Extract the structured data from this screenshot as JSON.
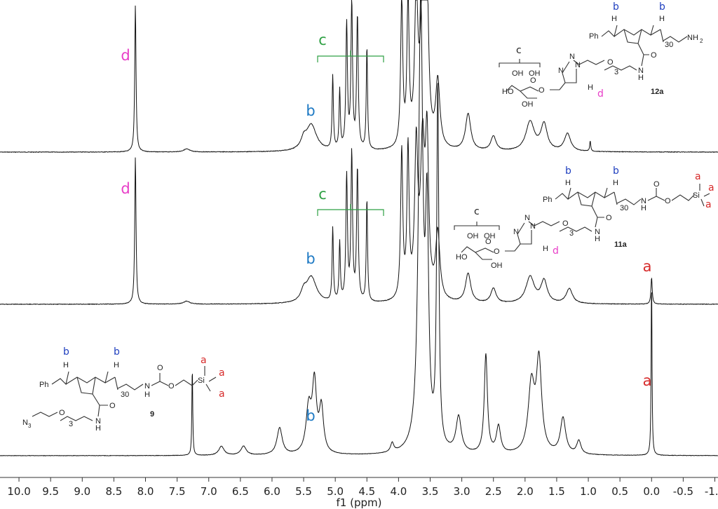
{
  "chart_data": {
    "type": "line",
    "xlabel": "f1 (ppm)",
    "xlim": [
      10.3,
      -1.05
    ],
    "x_reversed": true,
    "x_ticks": [
      "10.0",
      "9.5",
      "9.0",
      "8.5",
      "8.0",
      "7.5",
      "7.0",
      "6.5",
      "6.0",
      "5.5",
      "5.0",
      "4.5",
      "4.0",
      "3.5",
      "3.0",
      "2.5",
      "2.0",
      "1.5",
      "1.0",
      "0.5",
      "0.0",
      "-0.5",
      "-1.0"
    ],
    "x_tick_values": [
      10.0,
      9.5,
      9.0,
      8.5,
      8.0,
      7.5,
      7.0,
      6.5,
      6.0,
      5.5,
      5.0,
      4.5,
      4.0,
      3.5,
      3.0,
      2.5,
      2.0,
      1.5,
      1.0,
      0.5,
      0.0,
      -0.5,
      -1.0
    ],
    "grid": false,
    "series": [
      {
        "compound": "12a",
        "peaks": [
          {
            "x": 8.16,
            "y": 1.0,
            "w": 0.012
          },
          {
            "x": 7.35,
            "y": 0.02,
            "w": 0.06
          },
          {
            "x": 5.5,
            "y": 0.06,
            "w": 0.05
          },
          {
            "x": 5.38,
            "y": 0.18,
            "w": 0.1
          },
          {
            "x": 5.04,
            "y": 0.5,
            "w": 0.012
          },
          {
            "x": 4.93,
            "y": 0.4,
            "w": 0.012
          },
          {
            "x": 4.82,
            "y": 0.85,
            "w": 0.015
          },
          {
            "x": 4.74,
            "y": 1.0,
            "w": 0.015
          },
          {
            "x": 4.65,
            "y": 0.9,
            "w": 0.015
          },
          {
            "x": 4.5,
            "y": 0.7,
            "w": 0.012
          },
          {
            "x": 3.95,
            "y": 1.0,
            "w": 0.02
          },
          {
            "x": 3.85,
            "y": 1.0,
            "w": 0.02
          },
          {
            "x": 3.72,
            "y": 1.0,
            "w": 0.03
          },
          {
            "x": 3.62,
            "y": 1.0,
            "w": 0.04
          },
          {
            "x": 3.55,
            "y": 1.0,
            "w": 0.03
          },
          {
            "x": 3.38,
            "y": 0.45,
            "w": 0.04
          },
          {
            "x": 2.9,
            "y": 0.25,
            "w": 0.05
          },
          {
            "x": 2.5,
            "y": 0.1,
            "w": 0.05
          },
          {
            "x": 1.92,
            "y": 0.2,
            "w": 0.08
          },
          {
            "x": 1.7,
            "y": 0.18,
            "w": 0.06
          },
          {
            "x": 1.33,
            "y": 0.12,
            "w": 0.06
          },
          {
            "x": 0.97,
            "y": 0.07,
            "w": 0.01
          }
        ]
      },
      {
        "compound": "11a",
        "peaks": [
          {
            "x": 8.16,
            "y": 1.0,
            "w": 0.012
          },
          {
            "x": 7.35,
            "y": 0.02,
            "w": 0.06
          },
          {
            "x": 5.5,
            "y": 0.06,
            "w": 0.05
          },
          {
            "x": 5.38,
            "y": 0.18,
            "w": 0.1
          },
          {
            "x": 5.04,
            "y": 0.5,
            "w": 0.012
          },
          {
            "x": 4.93,
            "y": 0.4,
            "w": 0.012
          },
          {
            "x": 4.82,
            "y": 0.85,
            "w": 0.015
          },
          {
            "x": 4.74,
            "y": 1.0,
            "w": 0.015
          },
          {
            "x": 4.65,
            "y": 0.9,
            "w": 0.015
          },
          {
            "x": 4.5,
            "y": 0.7,
            "w": 0.012
          },
          {
            "x": 3.95,
            "y": 1.0,
            "w": 0.02
          },
          {
            "x": 3.85,
            "y": 1.0,
            "w": 0.02
          },
          {
            "x": 3.72,
            "y": 1.0,
            "w": 0.03
          },
          {
            "x": 3.62,
            "y": 1.0,
            "w": 0.04
          },
          {
            "x": 3.55,
            "y": 1.0,
            "w": 0.03
          },
          {
            "x": 3.38,
            "y": 0.45,
            "w": 0.04
          },
          {
            "x": 2.9,
            "y": 0.2,
            "w": 0.05
          },
          {
            "x": 2.5,
            "y": 0.1,
            "w": 0.05
          },
          {
            "x": 1.92,
            "y": 0.18,
            "w": 0.08
          },
          {
            "x": 1.7,
            "y": 0.15,
            "w": 0.06
          },
          {
            "x": 1.3,
            "y": 0.1,
            "w": 0.06
          },
          {
            "x": 0.0,
            "y": 0.18,
            "w": 0.012
          }
        ]
      },
      {
        "compound": "9",
        "peaks": [
          {
            "x": 7.26,
            "y": 0.2,
            "w": 0.008
          },
          {
            "x": 6.8,
            "y": 0.02,
            "w": 0.05
          },
          {
            "x": 6.45,
            "y": 0.02,
            "w": 0.05
          },
          {
            "x": 5.88,
            "y": 0.06,
            "w": 0.05
          },
          {
            "x": 5.42,
            "y": 0.1,
            "w": 0.05
          },
          {
            "x": 5.33,
            "y": 0.15,
            "w": 0.04
          },
          {
            "x": 5.22,
            "y": 0.1,
            "w": 0.04
          },
          {
            "x": 4.1,
            "y": 0.02,
            "w": 0.03
          },
          {
            "x": 3.65,
            "y": 1.0,
            "w": 0.04
          },
          {
            "x": 3.55,
            "y": 0.48,
            "w": 0.03
          },
          {
            "x": 3.38,
            "y": 0.8,
            "w": 0.02
          },
          {
            "x": 3.05,
            "y": 0.08,
            "w": 0.05
          },
          {
            "x": 2.62,
            "y": 0.22,
            "w": 0.03
          },
          {
            "x": 2.42,
            "y": 0.06,
            "w": 0.04
          },
          {
            "x": 1.9,
            "y": 0.15,
            "w": 0.06
          },
          {
            "x": 1.78,
            "y": 0.2,
            "w": 0.05
          },
          {
            "x": 1.4,
            "y": 0.08,
            "w": 0.05
          },
          {
            "x": 1.15,
            "y": 0.03,
            "w": 0.04
          },
          {
            "x": 0.0,
            "y": 0.4,
            "w": 0.008
          }
        ]
      }
    ],
    "annotations": [
      {
        "text": "d",
        "color": "#e83ec8",
        "x": 8.2,
        "spectrum": "12a"
      },
      {
        "text": "c",
        "color": "#2ea043",
        "x": 4.85,
        "spectrum": "12a"
      },
      {
        "text": "b",
        "color": "#1f7ac4",
        "x": 5.38,
        "spectrum": "12a"
      },
      {
        "text": "d",
        "color": "#e83ec8",
        "x": 8.2,
        "spectrum": "11a"
      },
      {
        "text": "c",
        "color": "#2ea043",
        "x": 4.85,
        "spectrum": "11a"
      },
      {
        "text": "b",
        "color": "#1f7ac4",
        "x": 5.38,
        "spectrum": "11a"
      },
      {
        "text": "a",
        "color": "#d62a2a",
        "x": 0.0,
        "spectrum": "11a"
      },
      {
        "text": "b",
        "color": "#1f7ac4",
        "x": 5.33,
        "spectrum": "9"
      },
      {
        "text": "a",
        "color": "#d62a2a",
        "x": 0.0,
        "spectrum": "9"
      }
    ]
  },
  "labels": {
    "d1": "d",
    "c1": "c",
    "b1": "b",
    "d2": "d",
    "c2": "c",
    "b2": "b",
    "a2": "a",
    "b3": "b",
    "a3": "a"
  },
  "structures": {
    "s12a": {
      "id": "12a",
      "ph": "Ph",
      "h1": "H",
      "h2": "H",
      "n30": "30",
      "nh2": "NH",
      "nh2_sub": "2",
      "o_amide": "O",
      "n_amide": "N",
      "h_amide": "H",
      "n3": "3",
      "o_peg": "O",
      "n_tri1": "N",
      "n_tri2": "N",
      "n_tri3": "N",
      "h_tri": "H",
      "oh1": "OH",
      "oh2": "OH",
      "oh3": "HO",
      "oh4": "OH",
      "o_ring": "O",
      "o_link": "O",
      "lbl_b1": "b",
      "lbl_b2": "b",
      "lbl_c": "c",
      "lbl_d": "d"
    },
    "s11a": {
      "id": "11a",
      "ph": "Ph",
      "h1": "H",
      "h2": "H",
      "n30": "30",
      "n_carb": "N",
      "h_carb": "H",
      "o_carb1": "O",
      "o_carb2": "O",
      "si": "Si",
      "o_amide": "O",
      "n_amide": "N",
      "h_amide": "H",
      "n3": "3",
      "o_peg": "O",
      "n_tri1": "N",
      "n_tri2": "N",
      "n_tri3": "N",
      "h_tri": "H",
      "oh1": "OH",
      "oh2": "OH",
      "oh3": "HO",
      "oh4": "OH",
      "o_ring": "O",
      "o_link": "O",
      "lbl_b1": "b",
      "lbl_b2": "b",
      "lbl_c": "c",
      "lbl_d": "d",
      "lbl_a1": "a",
      "lbl_a2": "a",
      "lbl_a3": "a"
    },
    "s9": {
      "id": "9",
      "ph": "Ph",
      "h1": "H",
      "h2": "H",
      "n30": "30",
      "n_carb": "N",
      "h_carb": "H",
      "o_carb1": "O",
      "o_carb2": "O",
      "si": "Si",
      "o_amide": "O",
      "n_amide": "N",
      "h_amide": "H",
      "n3_group": "N",
      "n3_sub": "3",
      "n3": "3",
      "o_peg": "O",
      "lbl_b1": "b",
      "lbl_b2": "b",
      "lbl_a1": "a",
      "lbl_a2": "a",
      "lbl_a3": "a"
    }
  }
}
